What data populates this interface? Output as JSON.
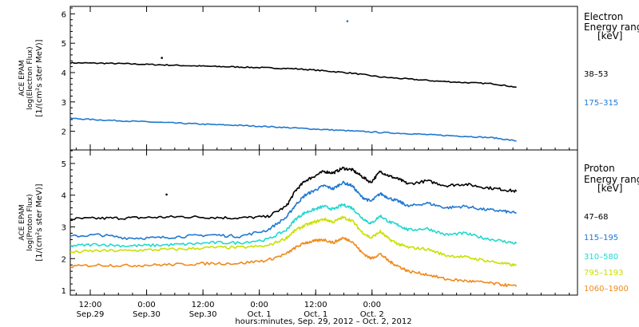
{
  "chart_data": [
    {
      "type": "line",
      "panel": "electron",
      "ylabel_lines": [
        "ACE EPAM",
        "log(Electron Flux)",
        "[1/(cm²s ster MeV)]"
      ],
      "ylim": [
        1.5,
        6.2
      ],
      "yticks": [
        "2",
        "3",
        "4",
        "5",
        "6"
      ],
      "legend_title": [
        "Electron",
        "Energy range",
        "[keV]"
      ],
      "x_hours": [
        0,
        6,
        12,
        18,
        24,
        30,
        36,
        42,
        48,
        54,
        60,
        66,
        72,
        78,
        84,
        90,
        95
      ],
      "series": [
        {
          "name": "38–53",
          "color": "#000000",
          "values": [
            4.33,
            4.32,
            4.3,
            4.27,
            4.24,
            4.21,
            4.19,
            4.16,
            4.13,
            4.06,
            3.98,
            3.85,
            3.78,
            3.71,
            3.66,
            3.62,
            3.5
          ]
        },
        {
          "name": "175–315",
          "color": "#1f78d0",
          "values": [
            2.44,
            2.39,
            2.35,
            2.31,
            2.27,
            2.23,
            2.2,
            2.16,
            2.11,
            2.06,
            2.01,
            1.96,
            1.92,
            1.87,
            1.83,
            1.78,
            1.67
          ]
        }
      ],
      "outliers": [
        {
          "x": 59.0,
          "y": 5.75,
          "color": "#1f78d0"
        },
        {
          "x": 19.5,
          "y": 4.5,
          "color": "#000000"
        }
      ]
    },
    {
      "type": "line",
      "panel": "proton",
      "ylabel_lines": [
        "ACE EPAM",
        "log(Proton Flux)",
        "[1/(cm²s ster MeV)]"
      ],
      "ylim": [
        0.9,
        5.3
      ],
      "yticks": [
        "1",
        "2",
        "3",
        "4",
        "5"
      ],
      "legend_title": [
        "Proton",
        "Energy range",
        "[keV]"
      ],
      "x_hours": [
        0,
        6,
        12,
        18,
        24,
        30,
        36,
        42,
        46,
        48,
        50,
        52,
        54,
        56,
        58,
        60,
        62,
        64,
        66,
        68,
        70,
        72,
        76,
        80,
        84,
        88,
        92,
        95
      ],
      "series": [
        {
          "name": "47–68",
          "color": "#000000",
          "values": [
            3.25,
            3.27,
            3.28,
            3.3,
            3.32,
            3.3,
            3.28,
            3.32,
            3.65,
            4.15,
            4.45,
            4.6,
            4.75,
            4.7,
            4.85,
            4.8,
            4.6,
            4.4,
            4.75,
            4.6,
            4.5,
            4.35,
            4.45,
            4.3,
            4.35,
            4.25,
            4.18,
            4.12
          ]
        },
        {
          "name": "115–195",
          "color": "#1f78d0",
          "values": [
            2.7,
            2.75,
            2.65,
            2.65,
            2.7,
            2.75,
            2.7,
            2.9,
            3.3,
            3.7,
            4.0,
            4.15,
            4.3,
            4.2,
            4.4,
            4.3,
            3.95,
            3.8,
            4.05,
            3.9,
            3.8,
            3.65,
            3.75,
            3.6,
            3.65,
            3.55,
            3.5,
            3.43
          ]
        },
        {
          "name": "310–580",
          "color": "#20d8d0",
          "values": [
            2.4,
            2.45,
            2.4,
            2.42,
            2.45,
            2.5,
            2.5,
            2.6,
            2.9,
            3.25,
            3.45,
            3.55,
            3.65,
            3.55,
            3.7,
            3.6,
            3.3,
            3.1,
            3.35,
            3.15,
            3.05,
            2.9,
            2.95,
            2.75,
            2.8,
            2.65,
            2.55,
            2.48
          ]
        },
        {
          "name": "795–1193",
          "color": "#c8e000",
          "values": [
            2.2,
            2.25,
            2.25,
            2.28,
            2.3,
            2.35,
            2.35,
            2.4,
            2.65,
            2.9,
            3.05,
            3.15,
            3.25,
            3.15,
            3.3,
            3.2,
            2.85,
            2.65,
            2.85,
            2.6,
            2.45,
            2.35,
            2.3,
            2.1,
            2.05,
            1.95,
            1.85,
            1.78
          ]
        },
        {
          "name": "1060–1900",
          "color": "#f08a1a",
          "values": [
            1.75,
            1.8,
            1.78,
            1.8,
            1.82,
            1.85,
            1.85,
            1.95,
            2.15,
            2.35,
            2.5,
            2.55,
            2.6,
            2.5,
            2.65,
            2.55,
            2.2,
            2.0,
            2.15,
            1.9,
            1.75,
            1.6,
            1.5,
            1.35,
            1.3,
            1.25,
            1.18,
            1.12
          ]
        }
      ],
      "outliers": [
        {
          "x": 20.5,
          "y": 4.02,
          "color": "#000000"
        }
      ]
    }
  ],
  "time_axis": {
    "xlim_hours": [
      0,
      108
    ],
    "major_ticks": [
      {
        "hour": 4.25,
        "top": "12:00",
        "bottom": "Sep.29"
      },
      {
        "hour": 16.25,
        "top": "0:00",
        "bottom": "Sep.30"
      },
      {
        "hour": 28.25,
        "top": "12:00",
        "bottom": "Sep.30"
      },
      {
        "hour": 40.25,
        "top": "0:00",
        "bottom": "Oct. 1"
      },
      {
        "hour": 52.25,
        "top": "12:00",
        "bottom": "Oct. 1"
      },
      {
        "hour": 64.25,
        "top": "0:00",
        "bottom": "Oct. 2"
      }
    ],
    "minor_every_hours": 3,
    "xlabel": "hours:minutes, Sep. 29, 2012 – Oct. 2, 2012"
  }
}
